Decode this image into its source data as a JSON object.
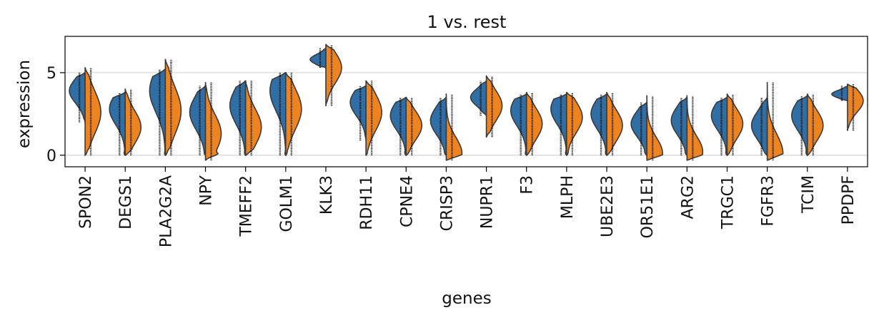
{
  "chart_data": {
    "type": "violin",
    "title": "1 vs. rest",
    "xlabel": "genes",
    "ylabel": "expression",
    "ylim": [
      -0.7,
      7.2
    ],
    "yticks": [
      0,
      5
    ],
    "grid": "horizontal",
    "split": true,
    "colors": {
      "group_1": "#2f6fa6",
      "rest": "#ee8420"
    },
    "categories": [
      "SPON2",
      "DEGS1",
      "PLA2G2A",
      "NPY",
      "TMEFF2",
      "GOLM1",
      "KLK3",
      "RDH11",
      "CPNE4",
      "CRISP3",
      "NUPR1",
      "F3",
      "MLPH",
      "UBE2E3",
      "OR51E1",
      "ARG2",
      "TRGC1",
      "FGFR3",
      "TCIM",
      "PPDPF"
    ],
    "series": [
      {
        "median": [
          3.9,
          2.8,
          3.9,
          2.6,
          3.0,
          3.9,
          5.8,
          3.2,
          2.4,
          2.1,
          3.5,
          2.7,
          2.8,
          2.5,
          1.9,
          2.1,
          2.4,
          1.8,
          2.4,
          3.7
        ],
        "min": [
          2.0,
          0.0,
          0.0,
          0.0,
          0.0,
          0.0,
          5.3,
          0.9,
          0.0,
          0.0,
          2.4,
          0.0,
          0.0,
          0.0,
          0.0,
          0.0,
          0.0,
          0.0,
          0.0,
          3.3
        ],
        "max": [
          5.0,
          3.8,
          5.2,
          4.2,
          4.5,
          5.0,
          6.5,
          4.2,
          3.5,
          3.5,
          4.5,
          3.7,
          3.7,
          3.7,
          3.2,
          3.5,
          3.5,
          3.5,
          3.6,
          4.2
        ]
      },
      {
        "median": [
          2.6,
          1.7,
          2.7,
          1.3,
          1.7,
          2.8,
          5.3,
          2.6,
          1.8,
          0.1,
          3.0,
          1.9,
          2.3,
          1.8,
          0.1,
          0.2,
          1.9,
          0.1,
          1.8,
          3.3
        ],
        "min": [
          0.0,
          0.0,
          0.0,
          -0.3,
          0.0,
          0.0,
          3.0,
          0.0,
          0.0,
          -0.3,
          1.1,
          0.0,
          0.0,
          0.0,
          -0.3,
          -0.3,
          0.0,
          -0.3,
          0.0,
          1.5
        ],
        "max": [
          5.3,
          4.0,
          5.8,
          4.4,
          4.5,
          5.0,
          6.7,
          4.5,
          3.5,
          3.7,
          4.8,
          3.8,
          3.8,
          3.8,
          3.6,
          3.6,
          3.7,
          4.4,
          3.7,
          4.3
        ]
      }
    ]
  }
}
